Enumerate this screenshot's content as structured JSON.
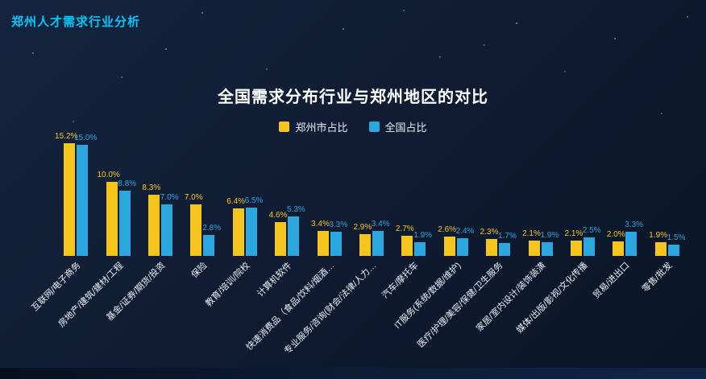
{
  "header": {
    "title": "郑州人才需求行业分析"
  },
  "colors": {
    "background": "#0f1c33",
    "header_accent": "#00c6ff",
    "zhengzhou_yellow": "#f6c51d",
    "national_blue": "#2ba6de"
  },
  "chart_data": {
    "type": "bar",
    "title": "全国需求分布行业与郑州地区的对比",
    "legend_position": "top",
    "grid": false,
    "value_suffix": "%",
    "ylim": [
      0,
      16
    ],
    "categories": [
      "互联网/电子商务",
      "房地产/建筑/建材/工程",
      "基金/证券/期货/投资",
      "保险",
      "教育/培训/院校",
      "计算机软件",
      "快速消费品（食品/饮料/烟酒…",
      "专业服务/咨询(财会/法律/人力…",
      "汽车/摩托车",
      "IT服务(系统/数据/维护)",
      "医疗/护理/美容/保健/卫生服务",
      "家居/室内设计/装饰装潢",
      "媒体/出版/影视/文化传播",
      "贸易/进出口",
      "零售/批发"
    ],
    "series": [
      {
        "name": "郑州市占比",
        "color": "#f6c51d",
        "values": [
          15.2,
          10.0,
          8.3,
          7.0,
          6.4,
          4.6,
          3.4,
          2.9,
          2.7,
          2.6,
          2.3,
          2.1,
          2.1,
          2.0,
          1.9
        ]
      },
      {
        "name": "全国占比",
        "color": "#2ba6de",
        "values": [
          15.0,
          8.8,
          7.0,
          2.8,
          6.5,
          5.3,
          3.3,
          3.4,
          1.9,
          2.4,
          1.7,
          1.9,
          2.5,
          3.3,
          1.5
        ]
      }
    ]
  }
}
